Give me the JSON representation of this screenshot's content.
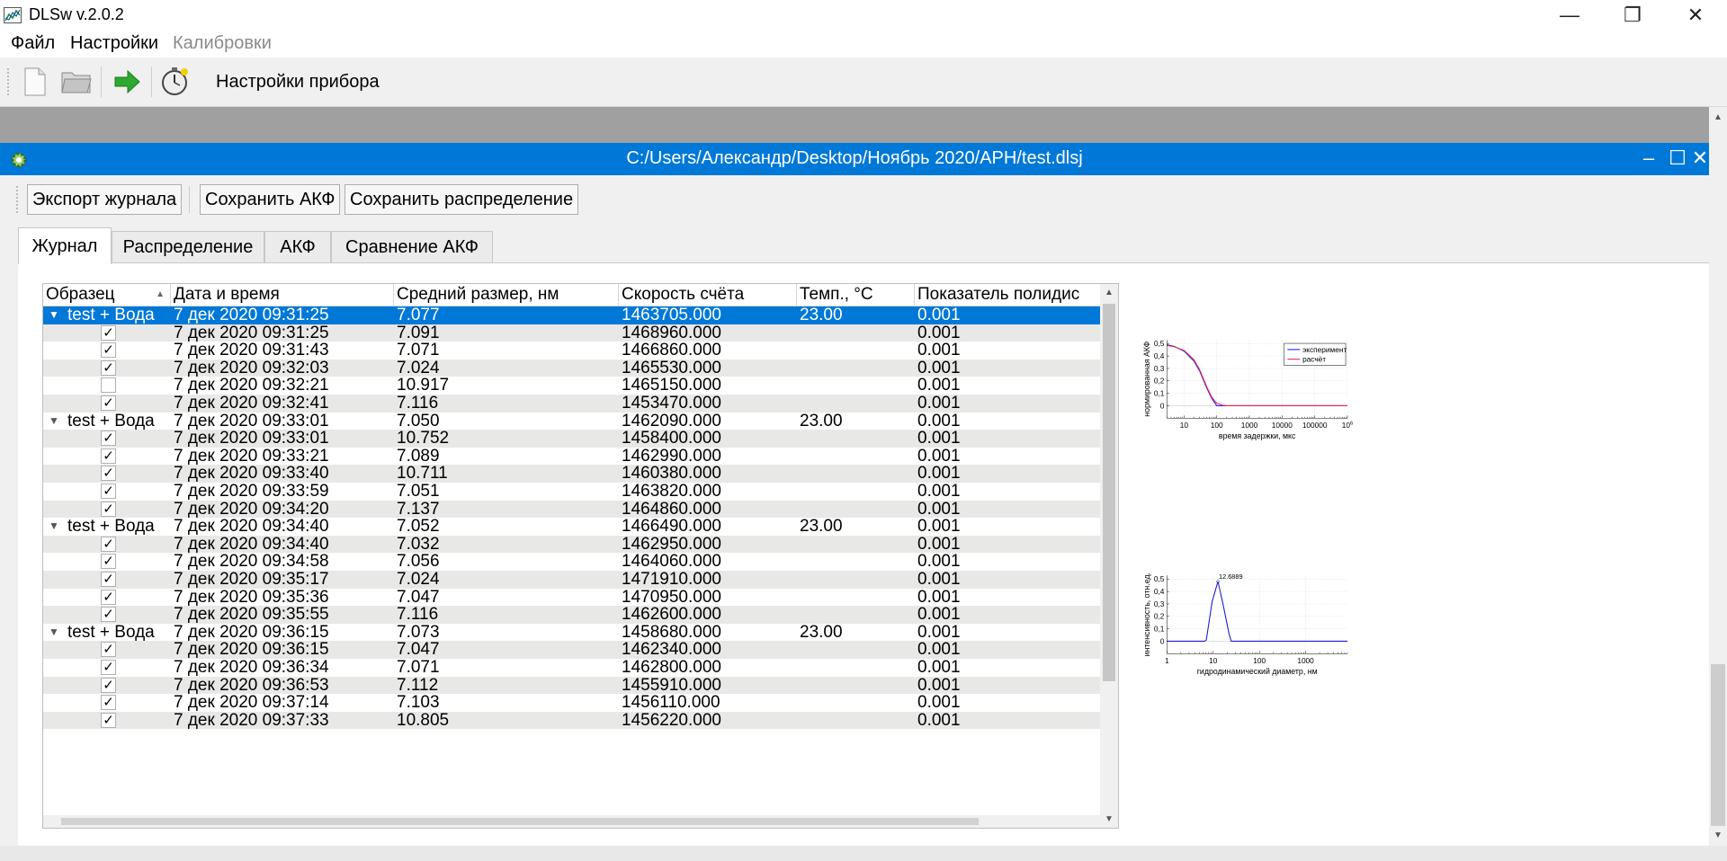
{
  "app": {
    "title": "DLSw   v.2.0.2",
    "minimize": "—",
    "restore": "❐",
    "close": "✕"
  },
  "menu": {
    "file": "Файл",
    "settings": "Настройки",
    "calibrations": "Калибровки"
  },
  "toolbar": {
    "device_settings": "Настройки прибора"
  },
  "subwindow": {
    "title": "C:/Users/Александр/Desktop/Ноябрь 2020/APH/test.dlsj",
    "minimize": "–",
    "maximize": "☐",
    "close": "✕"
  },
  "buttons": {
    "export_journal": "Экспорт журнала",
    "save_acf": "Сохранить АКФ",
    "save_distribution": "Сохранить распределение"
  },
  "tabs": [
    "Журнал",
    "Распределение",
    "АКФ",
    "Сравнение АКФ"
  ],
  "table": {
    "columns": [
      "Образец",
      "Дата и время",
      "Средний размер, нм",
      "Скорость счёта",
      "Темп., °C",
      "Показатель полидис"
    ],
    "rows": [
      {
        "kind": "group",
        "sample": "test + Вода",
        "date": "7 дек 2020 09:31:25",
        "size": "7.077",
        "rate": "1463705.000",
        "temp": "23.00",
        "pdi": "0.001",
        "selected": true
      },
      {
        "kind": "item",
        "checked": true,
        "date": "7 дек 2020 09:31:25",
        "size": "7.091",
        "rate": "1468960.000",
        "temp": "",
        "pdi": "0.001"
      },
      {
        "kind": "item",
        "checked": true,
        "date": "7 дек 2020 09:31:43",
        "size": "7.071",
        "rate": "1466860.000",
        "temp": "",
        "pdi": "0.001"
      },
      {
        "kind": "item",
        "checked": true,
        "date": "7 дек 2020 09:32:03",
        "size": "7.024",
        "rate": "1465530.000",
        "temp": "",
        "pdi": "0.001"
      },
      {
        "kind": "item",
        "checked": false,
        "date": "7 дек 2020 09:32:21",
        "size": "10.917",
        "rate": "1465150.000",
        "temp": "",
        "pdi": "0.001"
      },
      {
        "kind": "item",
        "checked": true,
        "date": "7 дек 2020 09:32:41",
        "size": "7.116",
        "rate": "1453470.000",
        "temp": "",
        "pdi": "0.001"
      },
      {
        "kind": "group",
        "sample": "test + Вода",
        "date": "7 дек 2020 09:33:01",
        "size": "7.050",
        "rate": "1462090.000",
        "temp": "23.00",
        "pdi": "0.001"
      },
      {
        "kind": "item",
        "checked": true,
        "date": "7 дек 2020 09:33:01",
        "size": "10.752",
        "rate": "1458400.000",
        "temp": "",
        "pdi": "0.001"
      },
      {
        "kind": "item",
        "checked": true,
        "date": "7 дек 2020 09:33:21",
        "size": "7.089",
        "rate": "1462990.000",
        "temp": "",
        "pdi": "0.001"
      },
      {
        "kind": "item",
        "checked": true,
        "date": "7 дек 2020 09:33:40",
        "size": "10.711",
        "rate": "1460380.000",
        "temp": "",
        "pdi": "0.001"
      },
      {
        "kind": "item",
        "checked": true,
        "date": "7 дек 2020 09:33:59",
        "size": "7.051",
        "rate": "1463820.000",
        "temp": "",
        "pdi": "0.001"
      },
      {
        "kind": "item",
        "checked": true,
        "date": "7 дек 2020 09:34:20",
        "size": "7.137",
        "rate": "1464860.000",
        "temp": "",
        "pdi": "0.001"
      },
      {
        "kind": "group",
        "sample": "test + Вода",
        "date": "7 дек 2020 09:34:40",
        "size": "7.052",
        "rate": "1466490.000",
        "temp": "23.00",
        "pdi": "0.001"
      },
      {
        "kind": "item",
        "checked": true,
        "date": "7 дек 2020 09:34:40",
        "size": "7.032",
        "rate": "1462950.000",
        "temp": "",
        "pdi": "0.001"
      },
      {
        "kind": "item",
        "checked": true,
        "date": "7 дек 2020 09:34:58",
        "size": "7.056",
        "rate": "1464060.000",
        "temp": "",
        "pdi": "0.001"
      },
      {
        "kind": "item",
        "checked": true,
        "date": "7 дек 2020 09:35:17",
        "size": "7.024",
        "rate": "1471910.000",
        "temp": "",
        "pdi": "0.001"
      },
      {
        "kind": "item",
        "checked": true,
        "date": "7 дек 2020 09:35:36",
        "size": "7.047",
        "rate": "1470950.000",
        "temp": "",
        "pdi": "0.001"
      },
      {
        "kind": "item",
        "checked": true,
        "date": "7 дек 2020 09:35:55",
        "size": "7.116",
        "rate": "1462600.000",
        "temp": "",
        "pdi": "0.001"
      },
      {
        "kind": "group",
        "sample": "test + Вода",
        "date": "7 дек 2020 09:36:15",
        "size": "7.073",
        "rate": "1458680.000",
        "temp": "23.00",
        "pdi": "0.001"
      },
      {
        "kind": "item",
        "checked": true,
        "date": "7 дек 2020 09:36:15",
        "size": "7.047",
        "rate": "1462340.000",
        "temp": "",
        "pdi": "0.001"
      },
      {
        "kind": "item",
        "checked": true,
        "date": "7 дек 2020 09:36:34",
        "size": "7.071",
        "rate": "1462800.000",
        "temp": "",
        "pdi": "0.001"
      },
      {
        "kind": "item",
        "checked": true,
        "date": "7 дек 2020 09:36:53",
        "size": "7.112",
        "rate": "1455910.000",
        "temp": "",
        "pdi": "0.001"
      },
      {
        "kind": "item",
        "checked": true,
        "date": "7 дек 2020 09:37:14",
        "size": "7.103",
        "rate": "1456110.000",
        "temp": "",
        "pdi": "0.001"
      },
      {
        "kind": "item",
        "checked": true,
        "date": "7 дек 2020 09:37:33",
        "size": "10.805",
        "rate": "1456220.000",
        "temp": "",
        "pdi": "0.001"
      }
    ]
  },
  "colors": {
    "selection": "#0078d7",
    "experiment": "#1a1aff",
    "calculated": "#e8274b",
    "distribution": "#1a1ad0"
  },
  "chart_data": [
    {
      "type": "line",
      "xscale": "log",
      "xlabel": "время задержки, мкс",
      "ylabel": "нормированная АКФ",
      "xlim": [
        3,
        1000000
      ],
      "ylim": [
        -0.1,
        0.53
      ],
      "xticks": [
        "10",
        "100",
        "1000",
        "10000",
        "100000",
        "10^6"
      ],
      "yticks": [
        "0,5",
        "0,4",
        "0,3",
        "0,2",
        "0,1",
        "0"
      ],
      "legend_position": "top-right",
      "series": [
        {
          "name": "эксперимент",
          "x": [
            3,
            5,
            10,
            20,
            30,
            50,
            70,
            100,
            150,
            200,
            1000,
            1000000
          ],
          "y": [
            0.49,
            0.478,
            0.44,
            0.36,
            0.28,
            0.14,
            0.06,
            0.0,
            0.0,
            0.0,
            0.0,
            0.0
          ]
        },
        {
          "name": "расчёт",
          "x": [
            3,
            5,
            10,
            20,
            30,
            50,
            70,
            100,
            150,
            200,
            1000,
            1000000
          ],
          "y": [
            0.485,
            0.475,
            0.445,
            0.37,
            0.29,
            0.15,
            0.07,
            0.02,
            0.004,
            0.0,
            0.0,
            0.0
          ]
        }
      ]
    },
    {
      "type": "line",
      "xscale": "log",
      "xlabel": "гидродинамический диаметр, нм",
      "ylabel": "интенсивность, отн.ед.",
      "xlim": [
        1,
        8000
      ],
      "ylim": [
        -0.1,
        0.53
      ],
      "xticks": [
        "1",
        "10",
        "100",
        "1000"
      ],
      "yticks": [
        "0,5",
        "0,4",
        "0,3",
        "0,2",
        "0,1",
        "0"
      ],
      "annotation": "12.6889",
      "series": [
        {
          "x": [
            1,
            6.5,
            7.1,
            9.5,
            12.6889,
            16.5,
            22,
            24.5,
            8000
          ],
          "y": [
            0,
            0,
            0.01,
            0.32,
            0.48,
            0.29,
            0.06,
            0,
            0
          ]
        }
      ]
    }
  ]
}
